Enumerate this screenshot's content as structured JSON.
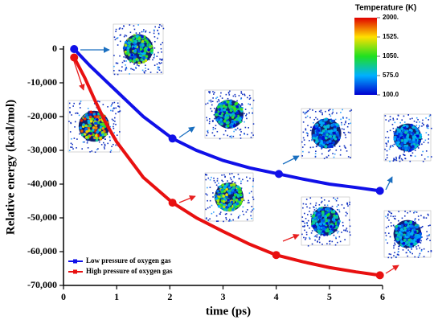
{
  "chart_data": {
    "type": "line",
    "xlabel": "time (ps)",
    "ylabel": "Relative energy (kcal/mol)",
    "xlim": [
      0,
      6
    ],
    "ylim": [
      -70000,
      0
    ],
    "xticks": [
      0,
      1,
      2,
      3,
      4,
      5,
      6
    ],
    "yticks": [
      {
        "value": -70000,
        "label": "-70,000"
      },
      {
        "value": -60000,
        "label": "-60,000"
      },
      {
        "value": -50000,
        "label": "-50,000"
      },
      {
        "value": -40000,
        "label": "-40,000"
      },
      {
        "value": -30000,
        "label": "-30,000"
      },
      {
        "value": -20000,
        "label": "-20,000"
      },
      {
        "value": -10000,
        "label": "-10,000"
      },
      0
    ],
    "series": [
      {
        "name": "Low pressure of oxygen gas",
        "color": "#1010e8",
        "x": [
          0.2,
          0.5,
          1.0,
          1.5,
          2.05,
          2.5,
          3.0,
          3.5,
          4.05,
          4.5,
          5.0,
          5.5,
          5.95
        ],
        "values": [
          0,
          -5000,
          -12500,
          -20000,
          -26500,
          -30000,
          -33000,
          -35200,
          -37000,
          -38500,
          -40000,
          -41000,
          -42000
        ],
        "points": {
          "x": [
            0.2,
            2.05,
            4.05,
            5.95
          ],
          "values": [
            0,
            -26500,
            -37000,
            -42000
          ]
        }
      },
      {
        "name": "High pressure of oxygen gas",
        "color": "#e81010",
        "x": [
          0.2,
          0.4,
          0.6,
          0.8,
          1.0,
          1.5,
          2.05,
          2.5,
          3.0,
          3.5,
          4.0,
          4.5,
          5.0,
          5.5,
          5.95
        ],
        "values": [
          -2500,
          -8500,
          -15500,
          -22000,
          -27500,
          -38000,
          -45500,
          -50000,
          -54000,
          -57800,
          -61000,
          -63000,
          -64700,
          -66000,
          -67000
        ],
        "points": {
          "x": [
            0.2,
            2.05,
            4.0,
            5.95
          ],
          "values": [
            -2500,
            -45500,
            -61000,
            -67000
          ]
        }
      }
    ],
    "legend": "lower left",
    "colorbar": {
      "title": "Temperature (K)",
      "ticks": [
        {
          "value": 2000,
          "label": "2000."
        },
        {
          "value": 1525,
          "label": "1525."
        },
        {
          "value": 1050,
          "label": "1050."
        },
        {
          "value": 575,
          "label": "575.0"
        },
        {
          "value": 100,
          "label": "100.0"
        }
      ]
    }
  }
}
